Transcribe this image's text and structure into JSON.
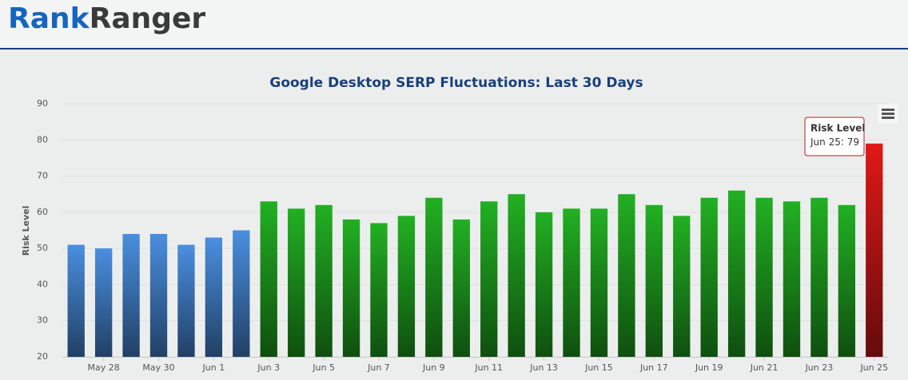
{
  "header": {
    "logo_first": "Rank",
    "logo_second": "Ranger"
  },
  "chart_data": {
    "type": "bar",
    "title": "Google Desktop SERP Fluctuations: Last 30 Days",
    "y_label": "Risk Level",
    "categories": [
      null,
      "May 28",
      null,
      "May 30",
      null,
      "Jun 1",
      null,
      "Jun 3",
      null,
      "Jun 5",
      null,
      "Jun 7",
      null,
      "Jun 9",
      null,
      "Jun 11",
      null,
      "Jun 13",
      null,
      "Jun 15",
      null,
      "Jun 17",
      null,
      "Jun 19",
      null,
      "Jun 21",
      null,
      "Jun 23",
      null,
      "Jun 25"
    ],
    "series": [
      {
        "name": "Risk Level",
        "values": [
          51,
          50,
          54,
          54,
          51,
          53,
          55,
          63,
          61,
          62,
          58,
          57,
          59,
          64,
          58,
          63,
          65,
          60,
          61,
          61,
          65,
          62,
          59,
          64,
          66,
          64,
          63,
          64,
          62,
          79
        ],
        "colors": [
          "#4a8fe0",
          "#4a8fe0",
          "#4a8fe0",
          "#4a8fe0",
          "#4a8fe0",
          "#4a8fe0",
          "#4a8fe0",
          "#22b022",
          "#22b022",
          "#22b022",
          "#22b022",
          "#22b022",
          "#22b022",
          "#22b022",
          "#22b022",
          "#22b022",
          "#22b022",
          "#22b022",
          "#22b022",
          "#22b022",
          "#22b022",
          "#22b022",
          "#22b022",
          "#22b022",
          "#22b022",
          "#22b022",
          "#22b022",
          "#22b022",
          "#22b022",
          "#e01818"
        ]
      }
    ],
    "ylim": [
      20,
      90
    ],
    "yticks": [
      20,
      30,
      40,
      50,
      60,
      70,
      80,
      90
    ],
    "grid": true,
    "tooltip_index": 29
  }
}
